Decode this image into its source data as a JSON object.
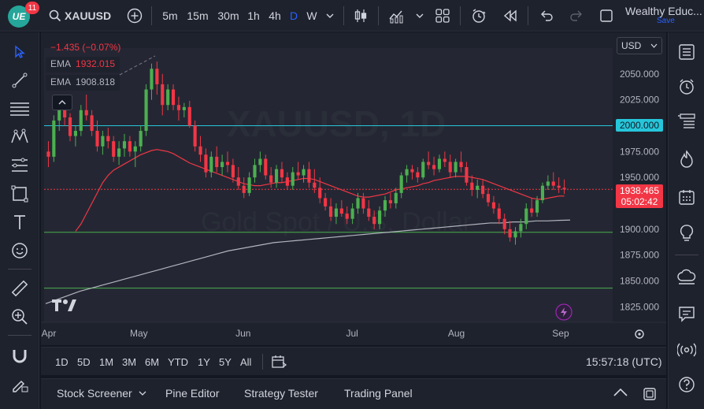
{
  "header": {
    "logo_text": "UE",
    "notification_count": "11",
    "symbol": "XAUUSD",
    "timeframes": [
      "5m",
      "15m",
      "30m",
      "1h",
      "4h",
      "D",
      "W"
    ],
    "active_timeframe": "D",
    "account_name": "Wealthy Educ...",
    "save_label": "Save"
  },
  "legend": {
    "change": "−1.435 (−0.07%)",
    "ema1_label": "EMA",
    "ema1_value": "1932.015",
    "ema2_label": "EMA",
    "ema2_value": "1908.818"
  },
  "price_axis": {
    "currency": "USD",
    "ticks": [
      "2050.000",
      "2025.000",
      "2000.000",
      "1975.000",
      "1950.000",
      "1925.000",
      "1900.000",
      "1875.000",
      "1850.000",
      "1825.000"
    ],
    "current_price": "1938.465",
    "countdown": "05:02:42",
    "level_label": "2000.000"
  },
  "time_axis": {
    "labels": [
      "Apr",
      "May",
      "Jun",
      "Jul",
      "Aug",
      "Sep"
    ]
  },
  "range_bar": {
    "ranges": [
      "1D",
      "5D",
      "1M",
      "3M",
      "6M",
      "YTD",
      "1Y",
      "5Y",
      "All"
    ],
    "clock": "15:57:18 (UTC)"
  },
  "bottom_panel": {
    "tabs": [
      "Stock Screener",
      "Pine Editor",
      "Strategy Tester",
      "Trading Panel"
    ]
  },
  "watermark": {
    "line1": "XAUUSD, 1D",
    "line2": "Gold Spot / U.S. Dollar"
  },
  "colors": {
    "up": "#26a69a",
    "up_candle": "#4caf50",
    "down": "#f23645",
    "ema_fast": "#f23645",
    "ema_slow": "#b2b5be",
    "resistance": "#26c6da",
    "support": "#4caf50",
    "accent": "#2962ff"
  },
  "chart_data": {
    "type": "candlestick",
    "symbol": "XAUUSD",
    "horizontal_lines": [
      2000,
      1897,
      1843
    ],
    "ohlc": [
      [
        1975,
        1985,
        1960,
        1970
      ],
      [
        1970,
        2010,
        1965,
        2005
      ],
      [
        2005,
        2020,
        1995,
        2015
      ],
      [
        2015,
        2025,
        2000,
        2008
      ],
      [
        2008,
        2012,
        1985,
        1990
      ],
      [
        1990,
        2000,
        1980,
        1995
      ],
      [
        1995,
        2020,
        1990,
        2015
      ],
      [
        2015,
        2030,
        2005,
        2010
      ],
      [
        2010,
        2015,
        1990,
        1995
      ],
      [
        1995,
        2005,
        1975,
        1980
      ],
      [
        1980,
        1995,
        1972,
        1990
      ],
      [
        1990,
        1998,
        1978,
        1985
      ],
      [
        1985,
        1990,
        1965,
        1970
      ],
      [
        1970,
        1985,
        1962,
        1978
      ],
      [
        1978,
        1992,
        1970,
        1985
      ],
      [
        1985,
        1990,
        1970,
        1975
      ],
      [
        1975,
        1985,
        1960,
        1980
      ],
      [
        1980,
        2000,
        1975,
        1995
      ],
      [
        1995,
        2040,
        1990,
        2035
      ],
      [
        2035,
        2060,
        2025,
        2055
      ],
      [
        2055,
        2062,
        2030,
        2040
      ],
      [
        2040,
        2050,
        2010,
        2020
      ],
      [
        2020,
        2040,
        2015,
        2035
      ],
      [
        2035,
        2040,
        2015,
        2020
      ],
      [
        2020,
        2028,
        2005,
        2015
      ],
      [
        2015,
        2022,
        2008,
        2018
      ],
      [
        2018,
        2024,
        1998,
        2000
      ],
      [
        2000,
        2005,
        1975,
        1980
      ],
      [
        1980,
        1990,
        1965,
        1972
      ],
      [
        1972,
        1978,
        1950,
        1955
      ],
      [
        1955,
        1975,
        1950,
        1970
      ],
      [
        1970,
        1980,
        1955,
        1960
      ],
      [
        1960,
        1972,
        1952,
        1965
      ],
      [
        1965,
        1975,
        1955,
        1962
      ],
      [
        1962,
        1968,
        1945,
        1950
      ],
      [
        1950,
        1960,
        1938,
        1942
      ],
      [
        1942,
        1950,
        1930,
        1935
      ],
      [
        1935,
        1955,
        1932,
        1950
      ],
      [
        1950,
        1968,
        1945,
        1962
      ],
      [
        1962,
        1975,
        1955,
        1968
      ],
      [
        1968,
        1972,
        1948,
        1952
      ],
      [
        1952,
        1960,
        1940,
        1945
      ],
      [
        1945,
        1962,
        1940,
        1958
      ],
      [
        1958,
        1965,
        1945,
        1950
      ],
      [
        1950,
        1955,
        1938,
        1942
      ],
      [
        1942,
        1960,
        1938,
        1955
      ],
      [
        1955,
        1965,
        1948,
        1952
      ],
      [
        1952,
        1962,
        1945,
        1958
      ],
      [
        1958,
        1965,
        1940,
        1945
      ],
      [
        1945,
        1958,
        1935,
        1940
      ],
      [
        1940,
        1950,
        1925,
        1930
      ],
      [
        1930,
        1935,
        1918,
        1922
      ],
      [
        1922,
        1930,
        1908,
        1912
      ],
      [
        1912,
        1925,
        1905,
        1920
      ],
      [
        1920,
        1928,
        1912,
        1915
      ],
      [
        1915,
        1922,
        1905,
        1910
      ],
      [
        1910,
        1925,
        1905,
        1920
      ],
      [
        1920,
        1935,
        1915,
        1930
      ],
      [
        1930,
        1935,
        1915,
        1920
      ],
      [
        1920,
        1928,
        1908,
        1912
      ],
      [
        1912,
        1918,
        1900,
        1905
      ],
      [
        1905,
        1922,
        1900,
        1918
      ],
      [
        1918,
        1932,
        1912,
        1928
      ],
      [
        1928,
        1935,
        1920,
        1925
      ],
      [
        1925,
        1940,
        1920,
        1935
      ],
      [
        1935,
        1955,
        1930,
        1952
      ],
      [
        1952,
        1962,
        1945,
        1958
      ],
      [
        1958,
        1962,
        1948,
        1955
      ],
      [
        1955,
        1960,
        1945,
        1950
      ],
      [
        1950,
        1968,
        1948,
        1965
      ],
      [
        1965,
        1975,
        1958,
        1962
      ],
      [
        1962,
        1970,
        1952,
        1958
      ],
      [
        1958,
        1972,
        1955,
        1968
      ],
      [
        1968,
        1975,
        1960,
        1965
      ],
      [
        1965,
        1972,
        1950,
        1955
      ],
      [
        1955,
        1968,
        1950,
        1965
      ],
      [
        1965,
        1975,
        1955,
        1960
      ],
      [
        1960,
        1965,
        1942,
        1945
      ],
      [
        1945,
        1952,
        1932,
        1938
      ],
      [
        1938,
        1948,
        1930,
        1942
      ],
      [
        1942,
        1948,
        1930,
        1934
      ],
      [
        1934,
        1940,
        1922,
        1926
      ],
      [
        1926,
        1932,
        1915,
        1920
      ],
      [
        1920,
        1925,
        1905,
        1910
      ],
      [
        1910,
        1915,
        1895,
        1900
      ],
      [
        1900,
        1908,
        1888,
        1892
      ],
      [
        1892,
        1902,
        1885,
        1898
      ],
      [
        1898,
        1910,
        1892,
        1905
      ],
      [
        1905,
        1925,
        1900,
        1920
      ],
      [
        1920,
        1930,
        1912,
        1916
      ],
      [
        1916,
        1932,
        1912,
        1928
      ],
      [
        1928,
        1945,
        1925,
        1942
      ],
      [
        1942,
        1952,
        1938,
        1946
      ],
      [
        1946,
        1955,
        1938,
        1942
      ],
      [
        1942,
        1950,
        1935,
        1940
      ],
      [
        1940,
        1948,
        1934,
        1938.465
      ]
    ],
    "ema_fast": [
      1898,
      1905,
      1915,
      1925,
      1935,
      1945,
      1952,
      1957,
      1960,
      1963,
      1966,
      1969,
      1972,
      1974,
      1976,
      1977,
      1976,
      1975,
      1973,
      1970,
      1967,
      1964,
      1962,
      1960,
      1958,
      1956,
      1954,
      1952,
      1950,
      1948,
      1946,
      1944,
      1943,
      1942,
      1942,
      1943,
      1944,
      1945,
      1945,
      1946,
      1947,
      1948,
      1949,
      1949,
      1948,
      1946,
      1944,
      1942,
      1940,
      1938,
      1936,
      1934,
      1932,
      1931,
      1931,
      1932,
      1933,
      1934,
      1936,
      1938,
      1939,
      1940,
      1941,
      1942,
      1944,
      1945,
      1947,
      1948,
      1949,
      1950,
      1951,
      1951,
      1951,
      1950,
      1949,
      1948,
      1946,
      1944,
      1942,
      1940,
      1938,
      1936,
      1934,
      1932,
      1930,
      1929,
      1929,
      1930,
      1931,
      1932,
      1932.015
    ],
    "ema_slow": [
      1828,
      1832,
      1836,
      1840,
      1843,
      1846,
      1849,
      1852,
      1855,
      1858,
      1861,
      1864,
      1867,
      1870,
      1873,
      1876,
      1879,
      1881,
      1883,
      1885,
      1887,
      1888,
      1889,
      1890,
      1891,
      1892,
      1893,
      1894,
      1895,
      1896,
      1897,
      1898,
      1899,
      1900,
      1901,
      1902,
      1903,
      1904,
      1905,
      1906,
      1906,
      1907,
      1907,
      1908,
      1908,
      1908.5,
      1908.818
    ],
    "ylim": [
      1810,
      2075
    ]
  }
}
